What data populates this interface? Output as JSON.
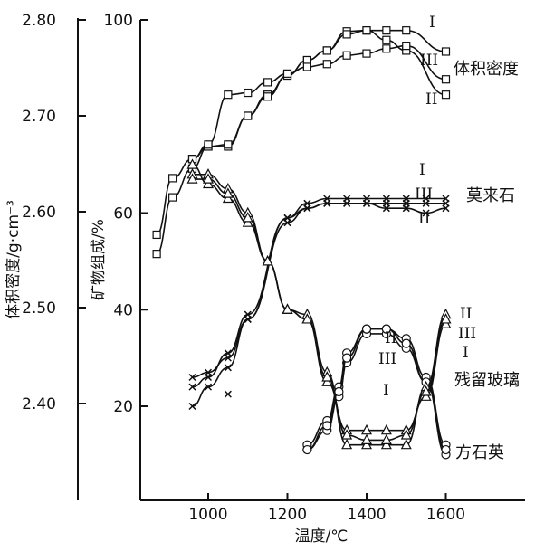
{
  "chart_data": {
    "type": "line",
    "xlabel": "温度/℃",
    "x_ticks": [
      1000,
      1200,
      1400,
      1600
    ],
    "y_left_label": "体积密度/g·cm⁻³",
    "y_left_ticks": [
      "2.80",
      "2.70",
      "2.60",
      "2.50",
      "2.40"
    ],
    "y_left_range": [
      2.36,
      2.8
    ],
    "y_right_label": "矿物组成/%",
    "y_right_ticks": [
      100,
      60,
      40,
      20
    ],
    "y_right_range": [
      12,
      100
    ],
    "xlim": [
      800,
      1800
    ],
    "groups": [
      {
        "name": "体积密度",
        "axis": "left",
        "marker": "square",
        "series": [
          {
            "name": "I",
            "x": [
              870,
              910,
              960,
              1000,
              1050,
              1100,
              1150,
              1200,
              1250,
              1300,
              1350,
              1400,
              1450,
              1500,
              1600
            ],
            "y": [
              2.576,
              2.635,
              2.655,
              2.668,
              2.668,
              2.7,
              2.722,
              2.742,
              2.758,
              2.768,
              2.788,
              2.789,
              2.789,
              2.789,
              2.767
            ]
          },
          {
            "name": "II",
            "x": [
              870,
              910,
              960,
              1000,
              1050,
              1100,
              1150,
              1200,
              1250,
              1300,
              1350,
              1400,
              1450,
              1500,
              1600
            ],
            "y": [
              2.556,
              2.615,
              2.645,
              2.668,
              2.67,
              2.7,
              2.72,
              2.742,
              2.758,
              2.768,
              2.785,
              2.789,
              2.779,
              2.768,
              2.722
            ]
          },
          {
            "name": "III",
            "x": [
              960,
              1000,
              1050,
              1100,
              1150,
              1200,
              1250,
              1300,
              1350,
              1400,
              1450,
              1500,
              1600
            ],
            "y": [
              2.655,
              2.67,
              2.722,
              2.724,
              2.735,
              2.744,
              2.751,
              2.754,
              2.763,
              2.765,
              2.77,
              2.773,
              2.738
            ]
          }
        ]
      },
      {
        "name": "莫来石",
        "axis": "right",
        "marker": "x",
        "series": [
          {
            "name": "I",
            "x": [
              960,
              1000,
              1050,
              1100,
              1200,
              1250,
              1300,
              1350,
              1400,
              1450,
              1500,
              1550,
              1600
            ],
            "y": [
              26,
              27,
              30,
              38,
              59,
              62,
              63,
              63,
              63,
              63,
              63,
              63,
              63
            ]
          },
          {
            "name": "II",
            "x": [
              960,
              1000,
              1050,
              1100,
              1200,
              1250,
              1300,
              1350,
              1400,
              1450,
              1500,
              1550,
              1600
            ],
            "y": [
              20,
              24,
              28,
              38,
              58,
              61,
              62,
              62,
              62,
              61,
              61,
              60,
              61
            ]
          },
          {
            "name": "III",
            "x": [
              960,
              1000,
              1050,
              1100,
              1200,
              1250,
              1300,
              1350,
              1400,
              1450,
              1500,
              1550,
              1600
            ],
            "y": [
              24,
              26,
              31,
              39,
              59,
              61,
              62,
              62,
              62,
              62,
              62,
              62,
              62
            ]
          }
        ],
        "outliers": {
          "x": [
            1050
          ],
          "y": [
            22.5
          ]
        }
      },
      {
        "name": "残留玻璃",
        "axis": "right",
        "marker": "circle",
        "series": [
          {
            "name": "I",
            "x": [
              1250,
              1300,
              1330,
              1350,
              1400,
              1450,
              1500,
              1550,
              1600
            ],
            "y": [
              11,
              15,
              22,
              29,
              35,
              35,
              32,
              25,
              10
            ]
          },
          {
            "name": "II",
            "x": [
              1250,
              1300,
              1330,
              1350,
              1400,
              1450,
              1500,
              1550,
              1600
            ],
            "y": [
              12,
              17,
              24,
              31,
              36,
              36,
              34,
              26,
              12
            ]
          },
          {
            "name": "III",
            "x": [
              1250,
              1300,
              1330,
              1350,
              1400,
              1450,
              1500,
              1550,
              1600
            ],
            "y": [
              11,
              16,
              23,
              30,
              36,
              36,
              33,
              25,
              11
            ]
          }
        ]
      },
      {
        "name": "方石英",
        "axis": "right",
        "marker": "triangle",
        "series": [
          {
            "name": "I",
            "x": [
              960,
              1000,
              1050,
              1100,
              1150,
              1200,
              1250,
              1300,
              1350,
              1400,
              1450,
              1500,
              1550,
              1600
            ],
            "y": [
              70,
              66,
              63,
              58,
              50,
              40,
              38,
              25,
              15,
              15,
              15,
              15,
              22,
              37
            ]
          },
          {
            "name": "II",
            "x": [
              960,
              1000,
              1050,
              1100,
              1150,
              1200,
              1250,
              1300,
              1350,
              1400,
              1450,
              1500,
              1550,
              1600
            ],
            "y": [
              68,
              68,
              65,
              60,
              50,
              40,
              39,
              27,
              12,
              12,
              12,
              12,
              24,
              39
            ]
          },
          {
            "name": "III",
            "x": [
              960,
              1000,
              1050,
              1100,
              1150,
              1200,
              1250,
              1300,
              1350,
              1400,
              1450,
              1500,
              1550,
              1600
            ],
            "y": [
              67,
              67,
              64,
              59,
              50,
              40,
              38,
              26,
              14,
              13,
              13,
              14,
              23,
              38
            ]
          }
        ]
      }
    ],
    "annotations": {
      "density_label": "体积密度",
      "mullite_label": "莫来石",
      "glass_label": "残留玻璃",
      "cristobalite_label": "方石英",
      "roman": [
        "I",
        "II",
        "III"
      ]
    }
  }
}
